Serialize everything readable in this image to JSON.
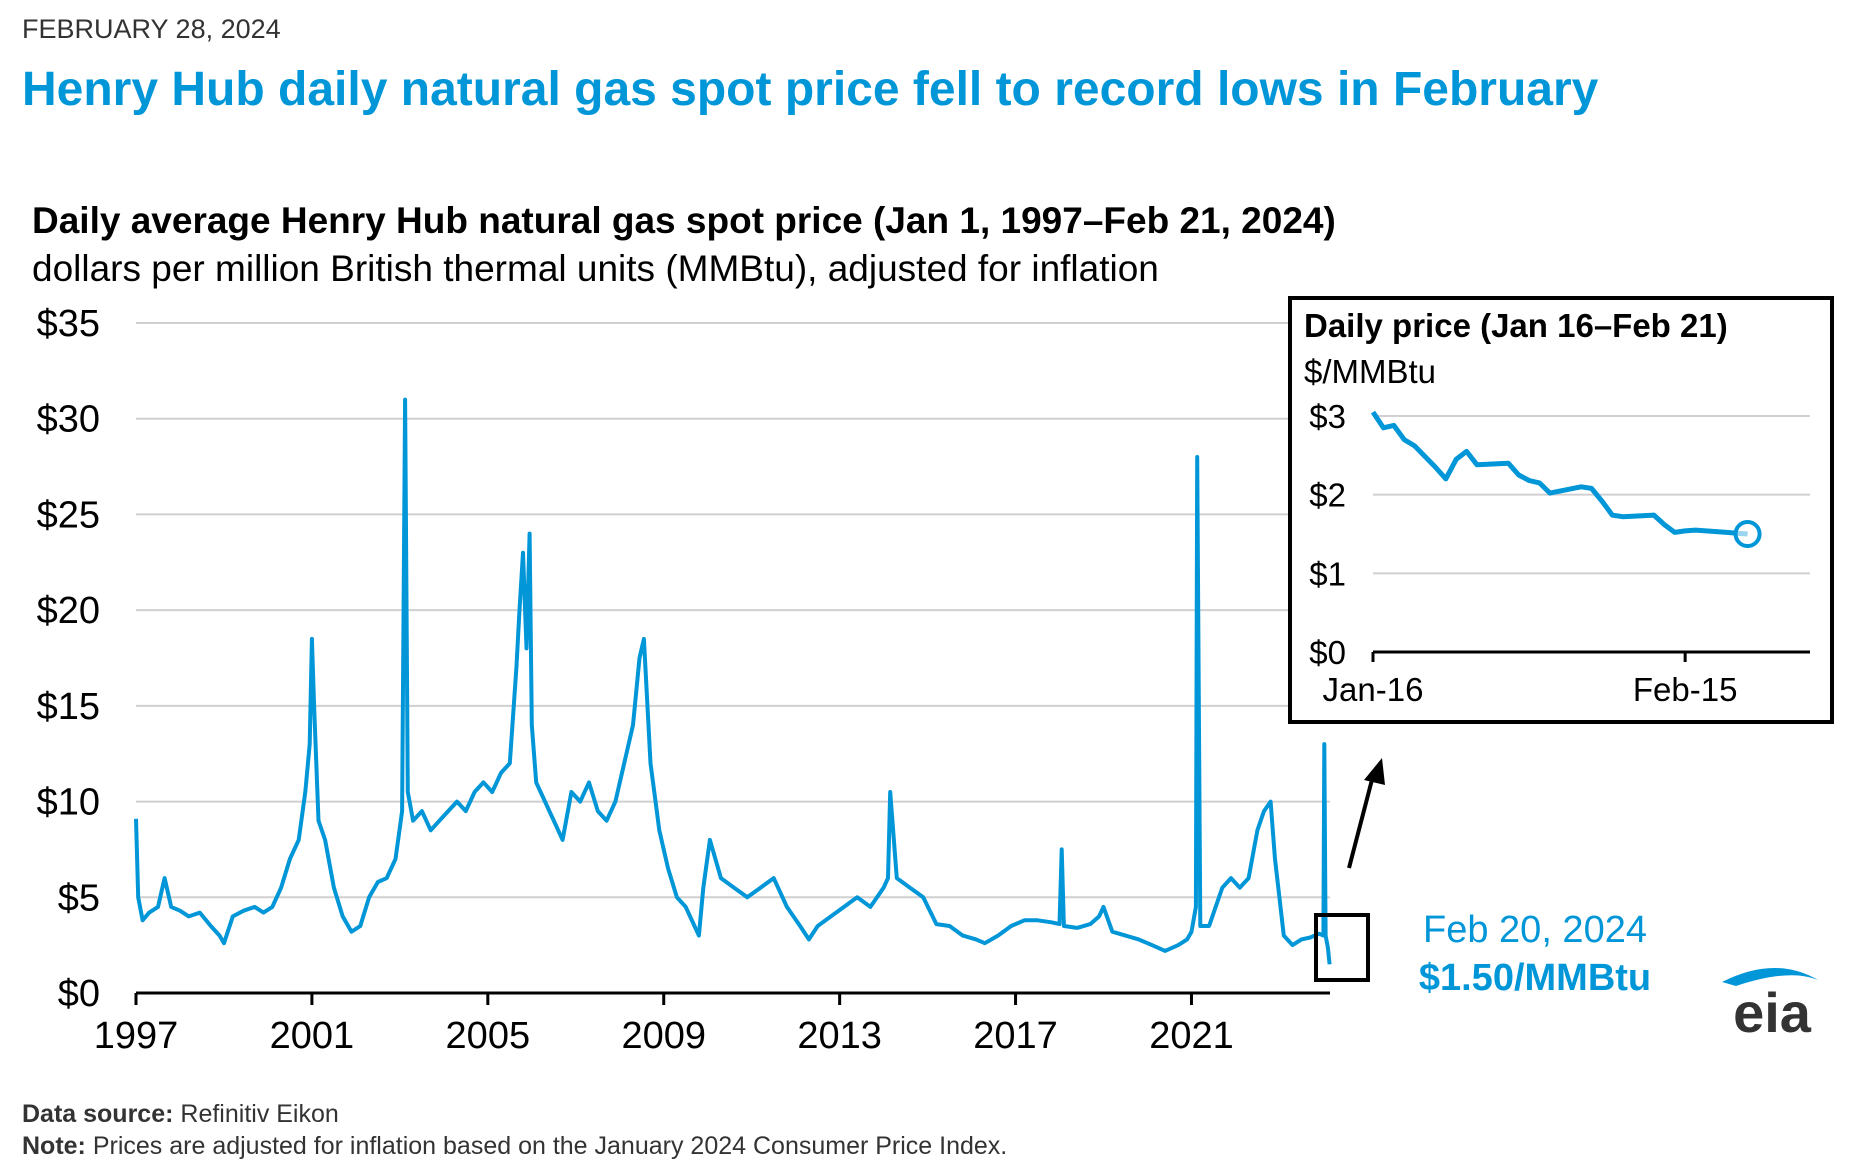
{
  "header": {
    "date": "FEBRUARY 28, 2024",
    "headline": "Henry Hub daily natural gas spot price fell to record lows in February"
  },
  "chart_data": [
    {
      "type": "line",
      "title": "Daily average Henry Hub natural gas spot price (Jan 1, 1997–Feb 21, 2024)",
      "subtitle": "dollars per million British thermal units (MMBtu), adjusted for inflation",
      "xlim": [
        1997,
        2024.15
      ],
      "ylim": [
        0,
        35
      ],
      "grid": true,
      "x_ticks": [
        "1997",
        "2001",
        "2005",
        "2009",
        "2013",
        "2017",
        "2021"
      ],
      "y_ticks": [
        "$0",
        "$5",
        "$10",
        "$15",
        "$20",
        "$25",
        "$30",
        "$35"
      ],
      "series": [
        {
          "x": [
            1997.0,
            1997.05,
            1997.15,
            1997.3,
            1997.5,
            1997.65,
            1997.8,
            1998.0,
            1998.2,
            1998.45,
            1998.7,
            1998.9,
            1999.0,
            1999.2,
            1999.45,
            1999.7,
            1999.9,
            2000.1,
            2000.3,
            2000.5,
            2000.7,
            2000.85,
            2000.95,
            2001.0,
            2001.05,
            2001.15,
            2001.3,
            2001.5,
            2001.7,
            2001.9,
            2002.1,
            2002.3,
            2002.5,
            2002.7,
            2002.9,
            2003.05,
            2003.12,
            2003.18,
            2003.3,
            2003.5,
            2003.7,
            2003.9,
            2004.1,
            2004.3,
            2004.5,
            2004.7,
            2004.9,
            2005.1,
            2005.3,
            2005.5,
            2005.65,
            2005.72,
            2005.8,
            2005.88,
            2005.95,
            2006.0,
            2006.1,
            2006.3,
            2006.5,
            2006.7,
            2006.9,
            2007.1,
            2007.3,
            2007.5,
            2007.7,
            2007.9,
            2008.1,
            2008.3,
            2008.45,
            2008.55,
            2008.7,
            2008.9,
            2009.1,
            2009.3,
            2009.5,
            2009.7,
            2009.8,
            2009.9,
            2010.05,
            2010.3,
            2010.6,
            2010.9,
            2011.2,
            2011.5,
            2011.8,
            2012.1,
            2012.3,
            2012.5,
            2012.8,
            2013.1,
            2013.4,
            2013.7,
            2014.0,
            2014.1,
            2014.15,
            2014.3,
            2014.6,
            2014.9,
            2015.2,
            2015.5,
            2015.8,
            2016.1,
            2016.3,
            2016.6,
            2016.9,
            2017.2,
            2017.5,
            2017.8,
            2018.0,
            2018.05,
            2018.1,
            2018.4,
            2018.7,
            2018.9,
            2019.0,
            2019.2,
            2019.5,
            2019.8,
            2020.1,
            2020.4,
            2020.7,
            2020.9,
            2021.0,
            2021.1,
            2021.13,
            2021.2,
            2021.4,
            2021.7,
            2021.9,
            2022.1,
            2022.3,
            2022.5,
            2022.65,
            2022.8,
            2022.9,
            2023.0,
            2023.1,
            2023.3,
            2023.5,
            2023.7,
            2023.9,
            2024.0,
            2024.02,
            2024.05,
            2024.1,
            2024.14
          ],
          "y": [
            9.1,
            5.0,
            3.8,
            4.2,
            4.5,
            6.0,
            4.5,
            4.3,
            4.0,
            4.2,
            3.5,
            3.0,
            2.6,
            4.0,
            4.3,
            4.5,
            4.2,
            4.5,
            5.5,
            7.0,
            8.0,
            10.5,
            13.0,
            18.5,
            15.0,
            9.0,
            8.0,
            5.5,
            4.0,
            3.2,
            3.5,
            5.0,
            5.8,
            6.0,
            7.0,
            9.5,
            31.0,
            10.5,
            9.0,
            9.5,
            8.5,
            9.0,
            9.5,
            10.0,
            9.5,
            10.5,
            11.0,
            10.5,
            11.5,
            12.0,
            17.0,
            20.0,
            23.0,
            18.0,
            24.0,
            14.0,
            11.0,
            10.0,
            9.0,
            8.0,
            10.5,
            10.0,
            11.0,
            9.5,
            9.0,
            10.0,
            12.0,
            14.0,
            17.5,
            18.5,
            12.0,
            8.5,
            6.5,
            5.0,
            4.5,
            3.5,
            3.0,
            5.5,
            8.0,
            6.0,
            5.5,
            5.0,
            5.5,
            6.0,
            4.5,
            3.5,
            2.8,
            3.5,
            4.0,
            4.5,
            5.0,
            4.5,
            5.5,
            6.0,
            10.5,
            6.0,
            5.5,
            5.0,
            3.6,
            3.5,
            3.0,
            2.8,
            2.6,
            3.0,
            3.5,
            3.8,
            3.8,
            3.7,
            3.6,
            7.5,
            3.5,
            3.4,
            3.6,
            4.0,
            4.5,
            3.2,
            3.0,
            2.8,
            2.5,
            2.2,
            2.5,
            2.8,
            3.2,
            4.5,
            28.0,
            3.5,
            3.5,
            5.5,
            6.0,
            5.5,
            6.0,
            8.5,
            9.5,
            10.0,
            7.0,
            5.0,
            3.0,
            2.5,
            2.8,
            2.9,
            3.1,
            3.0,
            13.0,
            3.0,
            2.4,
            1.5
          ]
        }
      ],
      "annotation": {
        "date_label": "Feb 20, 2024",
        "value_label": "$1.50/MMBtu"
      }
    },
    {
      "type": "line",
      "title": "Daily price (Jan 16–Feb 21)",
      "subtitle": "$/MMBtu",
      "xlim": [
        0,
        42
      ],
      "ylim": [
        0,
        3
      ],
      "grid": true,
      "x_ticks": [
        {
          "label": "Jan-16",
          "x": 0
        },
        {
          "label": "Feb-15",
          "x": 30
        }
      ],
      "y_ticks": [
        "$0",
        "$1",
        "$2",
        "$3"
      ],
      "series": [
        {
          "x": [
            0,
            1,
            2,
            3,
            4,
            6,
            7,
            8,
            9,
            10,
            13,
            14,
            15,
            16,
            17,
            20,
            21,
            22,
            23,
            24,
            27,
            28,
            29,
            30,
            31,
            34,
            35,
            36
          ],
          "y": [
            3.05,
            2.85,
            2.88,
            2.7,
            2.62,
            2.35,
            2.2,
            2.45,
            2.55,
            2.38,
            2.4,
            2.25,
            2.18,
            2.15,
            2.02,
            2.1,
            2.08,
            1.92,
            1.74,
            1.72,
            1.74,
            1.62,
            1.52,
            1.54,
            1.55,
            1.52,
            1.51,
            1.5
          ]
        }
      ]
    }
  ],
  "footer": {
    "source_label": "Data source:",
    "source_text": " Refinitiv Eikon",
    "note_label": "Note:",
    "note_text": " Prices are adjusted for inflation based on the January 2024 Consumer Price Index."
  },
  "logo": {
    "text": "eia",
    "icon": "eia-logo"
  },
  "colors": {
    "accent": "#0096d7",
    "grid": "#d0d0d0",
    "text": "#000000",
    "muted": "#333333"
  }
}
